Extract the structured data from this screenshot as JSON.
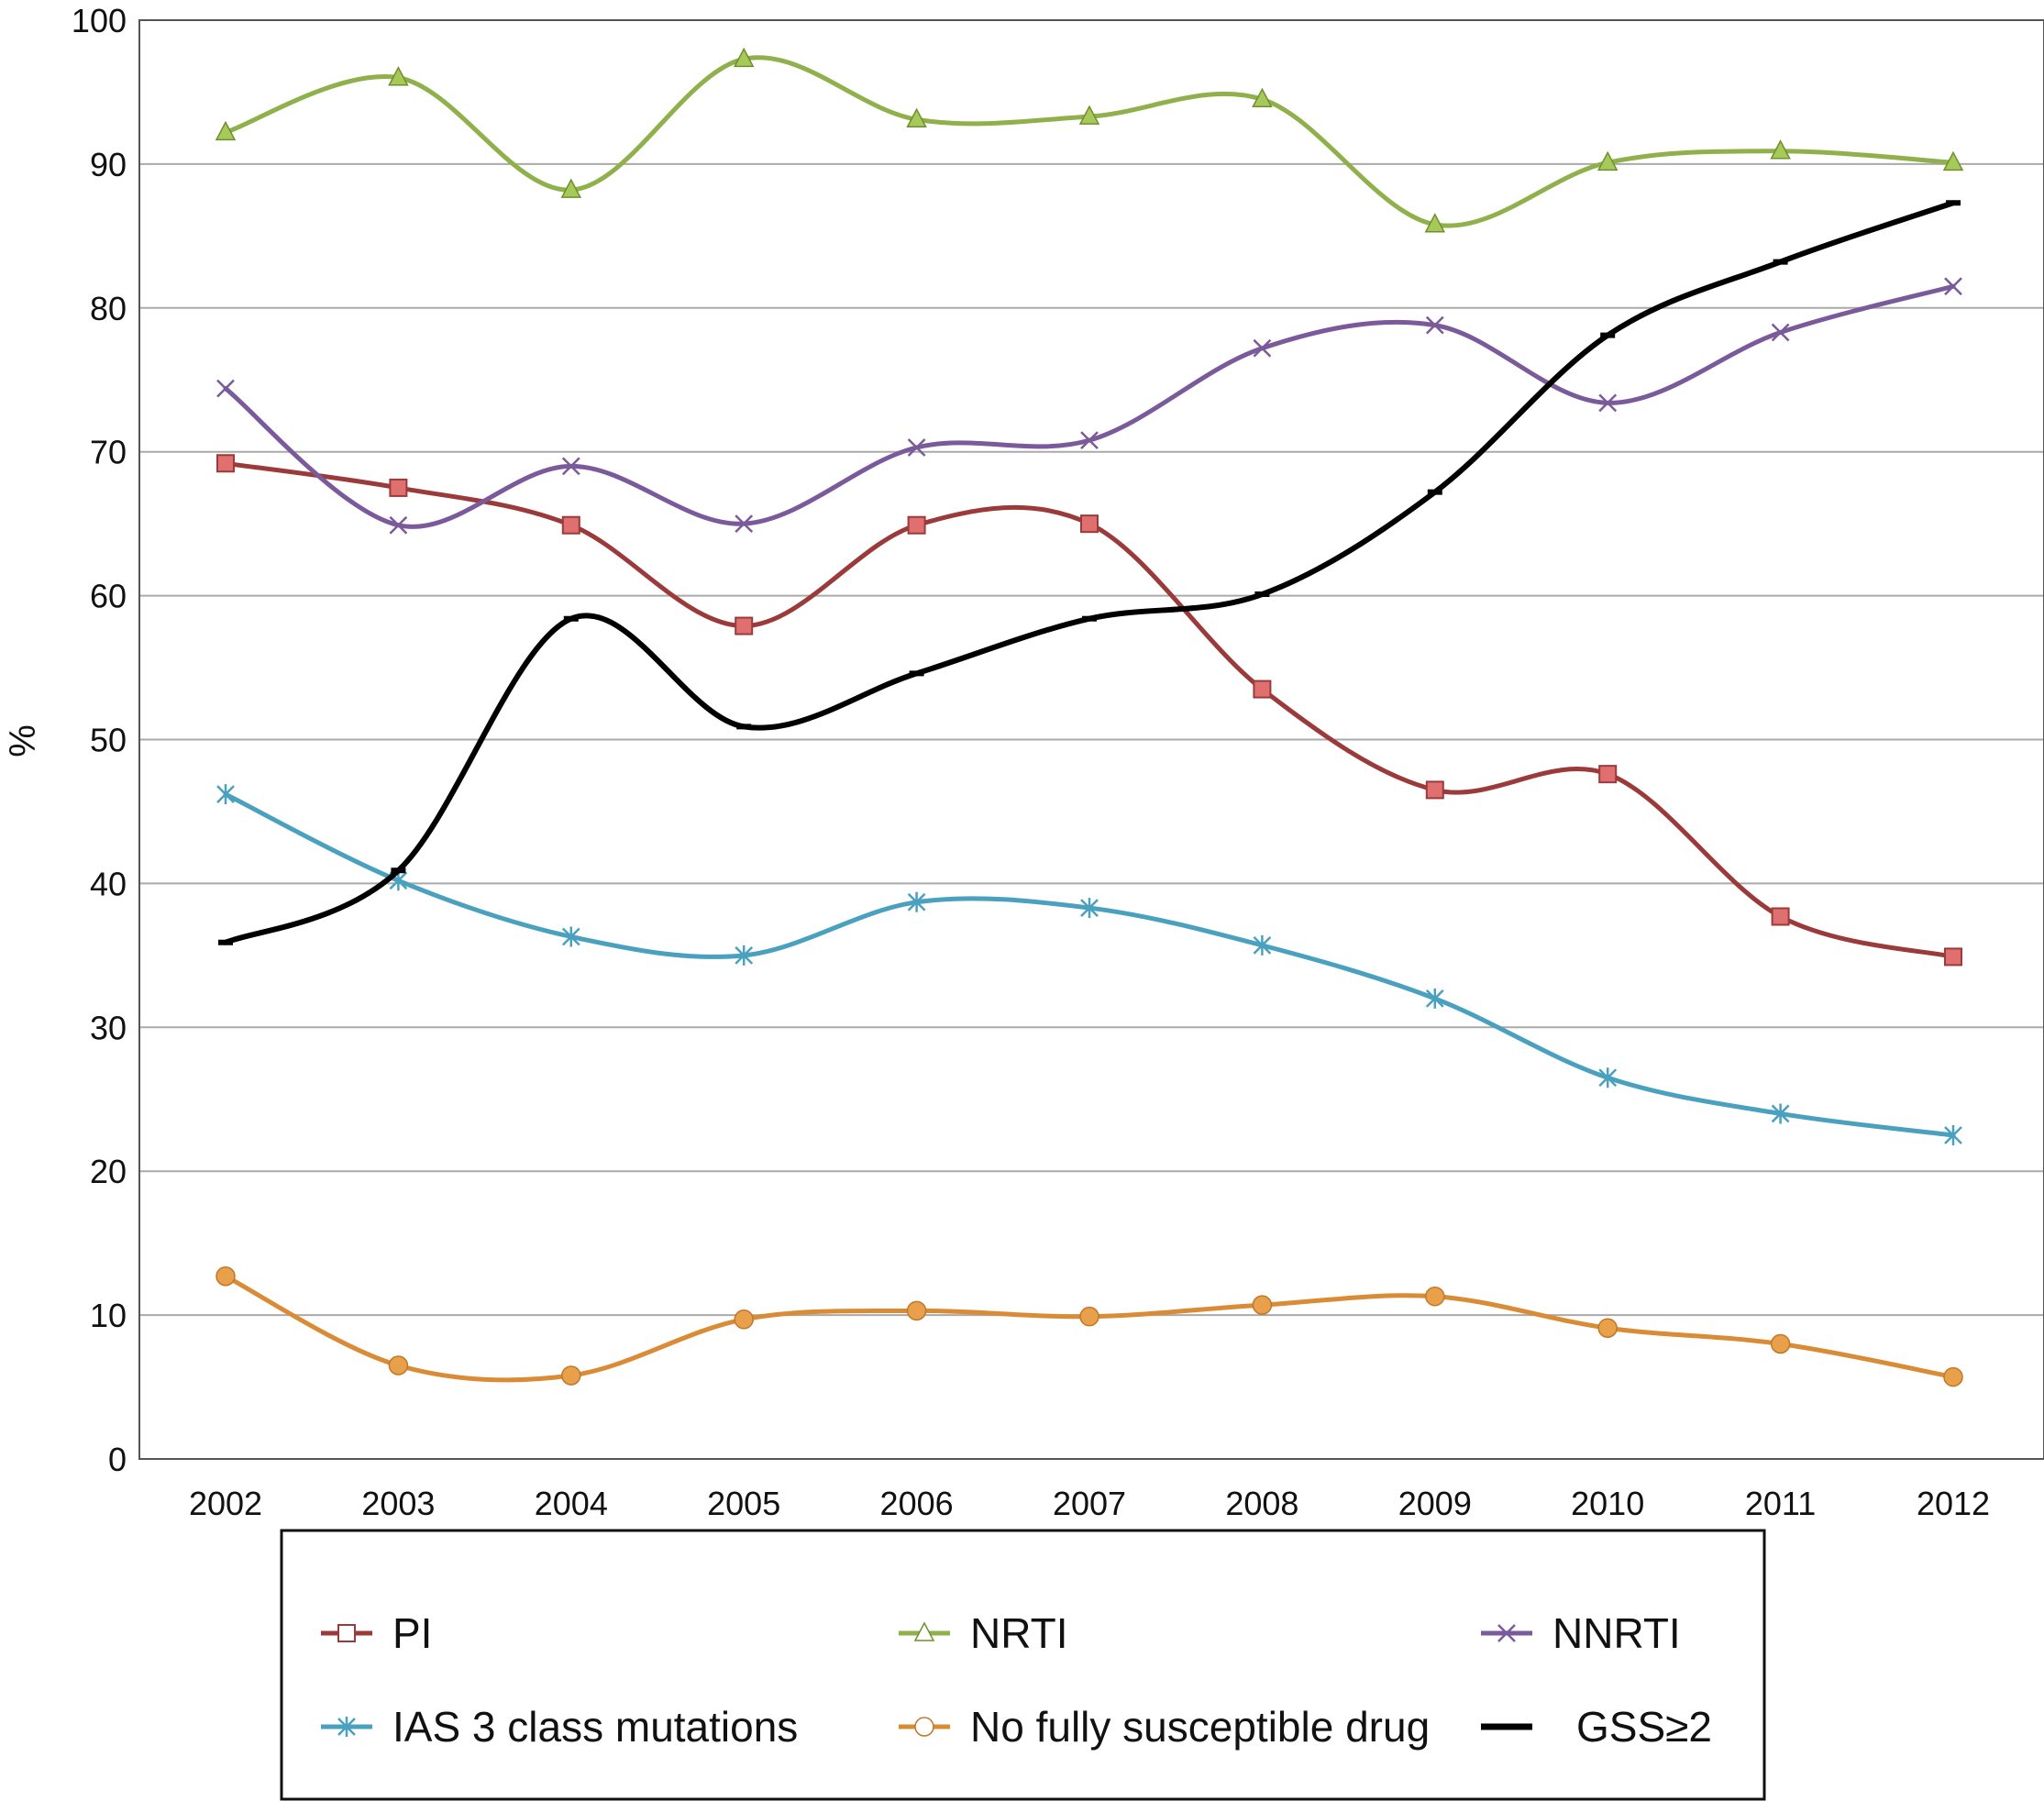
{
  "chart_data": {
    "type": "line",
    "smooth": true,
    "ylabel": "%",
    "xlabel": "",
    "ylim": [
      0,
      100
    ],
    "yticks": [
      0,
      10,
      20,
      30,
      40,
      50,
      60,
      70,
      80,
      90,
      100
    ],
    "grid": true,
    "legend_position": "bottom",
    "categories": [
      "2002",
      "2003",
      "2004",
      "2005",
      "2006",
      "2007",
      "2008",
      "2009",
      "2010",
      "2011",
      "2012"
    ],
    "series": [
      {
        "name": "PI",
        "color": "#9b3a3a",
        "fill": "#e07070",
        "marker": "square",
        "values": [
          69.2,
          67.5,
          64.9,
          57.9,
          64.9,
          65.0,
          53.5,
          46.5,
          47.6,
          37.7,
          34.9
        ]
      },
      {
        "name": "NRTI",
        "color": "#8fb04a",
        "fill": "#a6c95a",
        "marker": "triangle",
        "values": [
          92.2,
          96.0,
          88.2,
          97.3,
          93.1,
          93.3,
          94.5,
          85.8,
          90.1,
          90.9,
          90.1
        ]
      },
      {
        "name": "NNRTI",
        "color": "#7a5a9a",
        "fill": "#7a5a9a",
        "marker": "x",
        "values": [
          74.4,
          64.9,
          69.0,
          65.0,
          70.3,
          70.8,
          77.2,
          78.8,
          73.4,
          78.3,
          81.5
        ]
      },
      {
        "name": "IAS 3 class mutations",
        "color": "#4aa0bf",
        "fill": "#4aa0bf",
        "marker": "star",
        "values": [
          46.2,
          40.2,
          36.3,
          35.0,
          38.7,
          38.3,
          35.7,
          32.0,
          26.5,
          24.0,
          22.5
        ]
      },
      {
        "name": "No fully susceptible drug",
        "color": "#d98b35",
        "fill": "#e8a04a",
        "marker": "circle",
        "values": [
          12.7,
          6.5,
          5.8,
          9.7,
          10.3,
          9.9,
          10.7,
          11.3,
          9.1,
          8.0,
          5.7
        ]
      },
      {
        "name": "GSS≥2",
        "color": "#000000",
        "fill": "#000000",
        "marker": "dash",
        "values": [
          35.9,
          40.9,
          58.4,
          50.9,
          54.6,
          58.4,
          60.1,
          67.2,
          78.1,
          83.2,
          87.3
        ]
      }
    ]
  }
}
